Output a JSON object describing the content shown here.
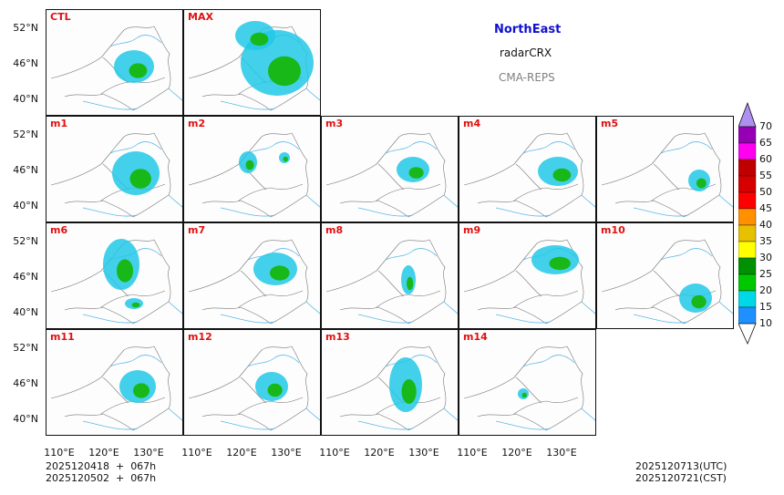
{
  "header": {
    "region": "NorthEast",
    "variable": "radarCRX",
    "model": "CMA-REPS"
  },
  "panels": {
    "ctl": "CTL",
    "max": "MAX",
    "m1": "m1",
    "m2": "m2",
    "m3": "m3",
    "m4": "m4",
    "m5": "m5",
    "m6": "m6",
    "m7": "m7",
    "m8": "m8",
    "m9": "m9",
    "m10": "m10",
    "m11": "m11",
    "m12": "m12",
    "m13": "m13",
    "m14": "m14"
  },
  "lat_labels": [
    "52°N",
    "46°N",
    "40°N"
  ],
  "lon_labels": [
    "110°E",
    "120°E",
    "130°E"
  ],
  "colorbar": {
    "levels": [
      "10",
      "15",
      "20",
      "25",
      "30",
      "35",
      "40",
      "45",
      "50",
      "55",
      "60",
      "65",
      "70"
    ],
    "colors": [
      "#1e90ff",
      "#00d8e8",
      "#00c800",
      "#009000",
      "#ffff00",
      "#e7c000",
      "#ff9000",
      "#ff0000",
      "#d60000",
      "#c00000",
      "#ff00f0",
      "#9600b4",
      "#ad90f0"
    ]
  },
  "footer": {
    "init_utc": "2025120418  +  067h",
    "init_cst": "2025120502  +  067h",
    "valid_utc": "2025120713(UTC)",
    "valid_cst": "2025120721(CST)"
  }
}
